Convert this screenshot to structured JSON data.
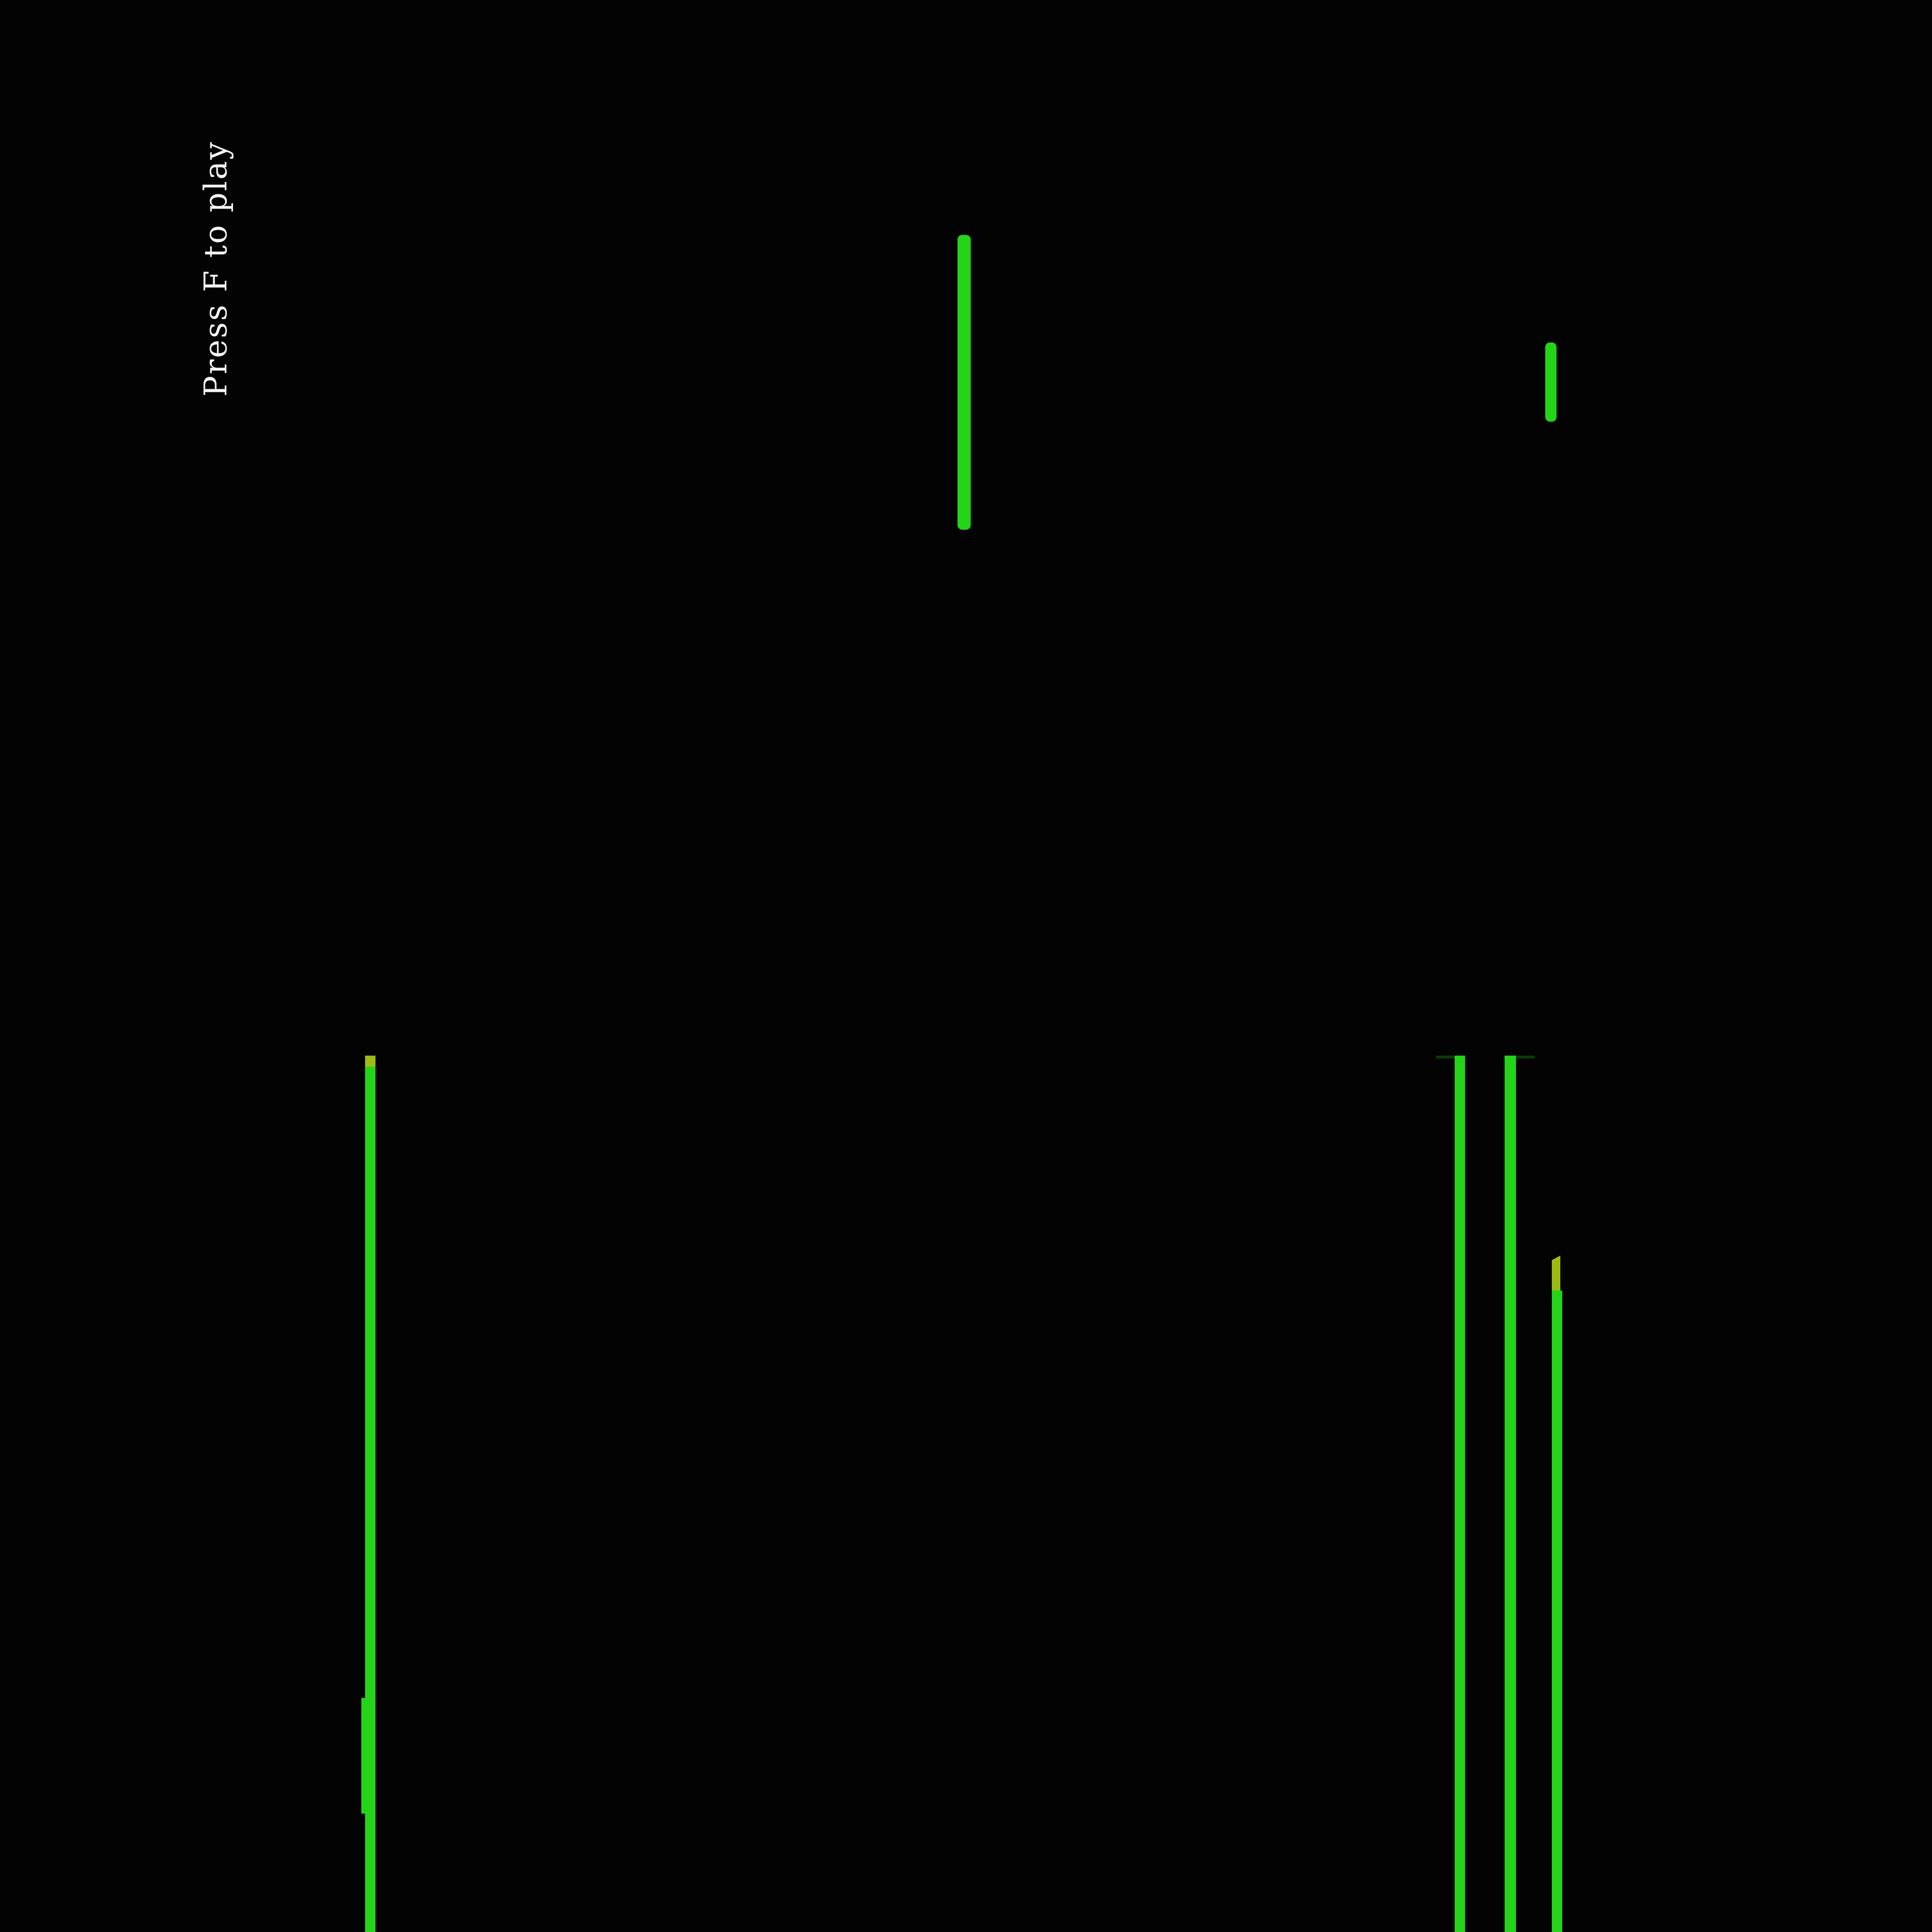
{
  "hud": {
    "start_prompt": "Press F to play"
  },
  "colors": {
    "background": "#030303",
    "laser_green": "#23d418",
    "laser_yellow_tip": "#9dbb11",
    "prompt_text": "#f4f4f4"
  },
  "game": {
    "state": "waiting-to-start",
    "start_key": "F"
  }
}
